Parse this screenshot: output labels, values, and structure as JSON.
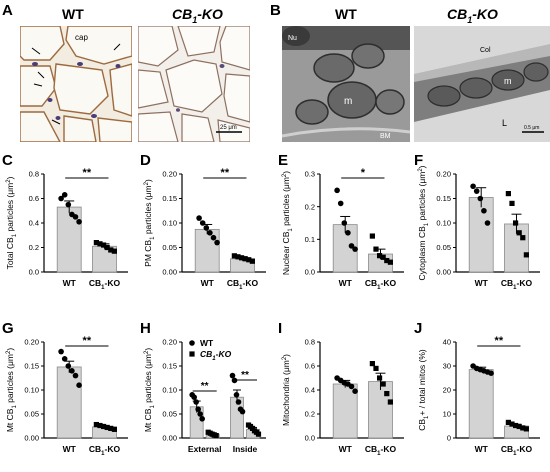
{
  "panels": {
    "A": {
      "letter": "A",
      "left_label": "WT",
      "right_label_main": "CB",
      "right_label_sub": "1",
      "right_label_suffix": "-KO",
      "cap_label": "cap",
      "scale_text": "25 μm"
    },
    "B": {
      "letter": "B",
      "left_label": "WT",
      "right_label_main": "CB",
      "right_label_sub": "1",
      "right_label_suffix": "-KO",
      "labels": {
        "nu": "Nu",
        "m1": "m",
        "bm": "BM",
        "col": "Col",
        "m2": "m",
        "l": "L"
      },
      "scale_text": "0.5 μm"
    }
  },
  "chart_data": [
    {
      "id": "C",
      "letter": "C",
      "type": "bar",
      "ylabel_parts": [
        "Total CB",
        "1",
        " particles (μm",
        "2",
        ")"
      ],
      "categories": [
        "WT",
        "CB1-KO"
      ],
      "cat_labels": [
        {
          "main": "WT",
          "sub": "",
          "suffix": ""
        },
        {
          "main": "CB",
          "sub": "1",
          "suffix": "-KO"
        }
      ],
      "yticks": [
        "0.0",
        "0.2",
        "0.4",
        "0.6",
        "0.8"
      ],
      "ylim": [
        0,
        0.8
      ],
      "values": [
        0.53,
        0.21
      ],
      "errors": [
        0.05,
        0.02
      ],
      "points": [
        [
          0.6,
          0.63,
          0.55,
          0.47,
          0.45,
          0.41
        ],
        [
          0.24,
          0.23,
          0.22,
          0.2,
          0.18,
          0.17
        ]
      ],
      "significance": "**"
    },
    {
      "id": "D",
      "letter": "D",
      "type": "bar",
      "ylabel_parts": [
        "PM CB",
        "1",
        " particles (μm",
        "2",
        ")"
      ],
      "categories": [
        "WT",
        "CB1-KO"
      ],
      "cat_labels": [
        {
          "main": "WT",
          "sub": "",
          "suffix": ""
        },
        {
          "main": "CB",
          "sub": "1",
          "suffix": "-KO"
        }
      ],
      "yticks": [
        "0.00",
        "0.05",
        "0.10",
        "0.15",
        "0.20"
      ],
      "ylim": [
        0,
        0.2
      ],
      "values": [
        0.087,
        0.027
      ],
      "errors": [
        0.01,
        0.004
      ],
      "points": [
        [
          0.11,
          0.1,
          0.09,
          0.08,
          0.07,
          0.06
        ],
        [
          0.033,
          0.031,
          0.029,
          0.027,
          0.025,
          0.022
        ]
      ],
      "significance": "**"
    },
    {
      "id": "E",
      "letter": "E",
      "type": "bar",
      "ylabel_parts": [
        "Nuclear CB",
        "1",
        " particles (μm",
        "2",
        ")"
      ],
      "categories": [
        "WT",
        "CB1-KO"
      ],
      "cat_labels": [
        {
          "main": "WT",
          "sub": "",
          "suffix": ""
        },
        {
          "main": "CB",
          "sub": "1",
          "suffix": "-KO"
        }
      ],
      "yticks": [
        "0.0",
        "0.1",
        "0.2",
        "0.3"
      ],
      "ylim": [
        0,
        0.3
      ],
      "values": [
        0.145,
        0.055
      ],
      "errors": [
        0.025,
        0.015
      ],
      "points": [
        [
          0.25,
          0.21,
          0.15,
          0.12,
          0.08,
          0.07
        ],
        [
          0.11,
          0.07,
          0.05,
          0.045,
          0.035,
          0.03
        ]
      ],
      "significance": "*"
    },
    {
      "id": "F",
      "letter": "F",
      "type": "bar",
      "ylabel_parts": [
        "Cytoplasm CB",
        "1",
        " particles (μm",
        "2",
        ")"
      ],
      "categories": [
        "WT",
        "CB1-KO"
      ],
      "cat_labels": [
        {
          "main": "WT",
          "sub": "",
          "suffix": ""
        },
        {
          "main": "CB",
          "sub": "1",
          "suffix": "-KO"
        }
      ],
      "yticks": [
        "0.00",
        "0.05",
        "0.10",
        "0.15",
        "0.20"
      ],
      "ylim": [
        0,
        0.2
      ],
      "values": [
        0.152,
        0.098
      ],
      "errors": [
        0.02,
        0.02
      ],
      "points": [
        [
          0.175,
          0.165,
          0.15,
          0.125,
          0.1
        ],
        [
          0.16,
          0.14,
          0.1,
          0.08,
          0.07,
          0.035
        ]
      ],
      "significance": ""
    },
    {
      "id": "G",
      "letter": "G",
      "type": "bar",
      "ylabel_parts": [
        "Mt CB",
        "1",
        " particles (μm",
        "2",
        ")"
      ],
      "categories": [
        "WT",
        "CB1-KO"
      ],
      "cat_labels": [
        {
          "main": "WT",
          "sub": "",
          "suffix": ""
        },
        {
          "main": "CB",
          "sub": "1",
          "suffix": "-KO"
        }
      ],
      "yticks": [
        "0.00",
        "0.05",
        "0.10",
        "0.15",
        "0.20"
      ],
      "ylim": [
        0,
        0.2
      ],
      "values": [
        0.148,
        0.023
      ],
      "errors": [
        0.012,
        0.003
      ],
      "points": [
        [
          0.18,
          0.165,
          0.15,
          0.14,
          0.13,
          0.11
        ],
        [
          0.028,
          0.026,
          0.024,
          0.022,
          0.02,
          0.018
        ]
      ],
      "significance": "**"
    },
    {
      "id": "H",
      "letter": "H",
      "type": "bar",
      "ylabel_parts": [
        "Mt CB",
        "1",
        " particles (μm",
        "2",
        ")"
      ],
      "categories": [
        "External",
        "Inside"
      ],
      "legend": [
        {
          "main": "WT",
          "sub": "",
          "suffix": "",
          "italic": false
        },
        {
          "main": "CB",
          "sub": "1",
          "suffix": "-KO",
          "italic": true
        }
      ],
      "yticks": [
        "0.00",
        "0.05",
        "0.10",
        "0.15",
        "0.20"
      ],
      "ylim": [
        0,
        0.2
      ],
      "series": [
        {
          "name": "WT",
          "values": [
            0.065,
            0.085
          ],
          "errors": [
            0.012,
            0.015
          ],
          "points": [
            [
              0.09,
              0.085,
              0.075,
              0.06,
              0.05,
              0.04
            ],
            [
              0.13,
              0.12,
              0.09,
              0.075,
              0.06,
              0.055
            ]
          ]
        },
        {
          "name": "CB1-KO",
          "values": [
            0.008,
            0.018
          ],
          "errors": [
            0.003,
            0.004
          ],
          "points": [
            [
              0.012,
              0.01,
              0.008,
              0.006,
              0.005
            ],
            [
              0.027,
              0.024,
              0.02,
              0.015,
              0.012,
              0.008
            ]
          ]
        }
      ],
      "significance": [
        "**",
        "**"
      ]
    },
    {
      "id": "I",
      "letter": "I",
      "type": "bar",
      "ylabel_parts": [
        "Mitochondria (μm",
        "2",
        ")",
        "",
        ""
      ],
      "categories": [
        "WT",
        "CB1-KO"
      ],
      "cat_labels": [
        {
          "main": "WT",
          "sub": "",
          "suffix": ""
        },
        {
          "main": "CB",
          "sub": "1",
          "suffix": "-KO"
        }
      ],
      "yticks": [
        "0.0",
        "0.2",
        "0.4",
        "0.6",
        "0.8"
      ],
      "ylim": [
        0,
        0.8
      ],
      "values": [
        0.45,
        0.47
      ],
      "errors": [
        0.03,
        0.07
      ],
      "points": [
        [
          0.5,
          0.48,
          0.46,
          0.45,
          0.43,
          0.39
        ],
        [
          0.62,
          0.58,
          0.5,
          0.45,
          0.37,
          0.3
        ]
      ],
      "significance": ""
    },
    {
      "id": "J",
      "letter": "J",
      "type": "bar",
      "ylabel_parts": [
        "CB",
        "1",
        "+ / total mitos (%)",
        "",
        ""
      ],
      "categories": [
        "WT",
        "CB1-KO"
      ],
      "cat_labels": [
        {
          "main": "WT",
          "sub": "",
          "suffix": ""
        },
        {
          "main": "CB",
          "sub": "1",
          "suffix": "-KO"
        }
      ],
      "yticks": [
        "0",
        "10",
        "20",
        "30",
        "40"
      ],
      "ylim": [
        0,
        40
      ],
      "values": [
        28.5,
        5
      ],
      "errors": [
        1,
        0.7
      ],
      "points": [
        [
          30,
          29,
          28.5,
          28,
          27.5,
          27
        ],
        [
          6.5,
          5.8,
          5.2,
          4.8,
          4.2,
          3.8
        ]
      ],
      "significance": "**"
    }
  ]
}
